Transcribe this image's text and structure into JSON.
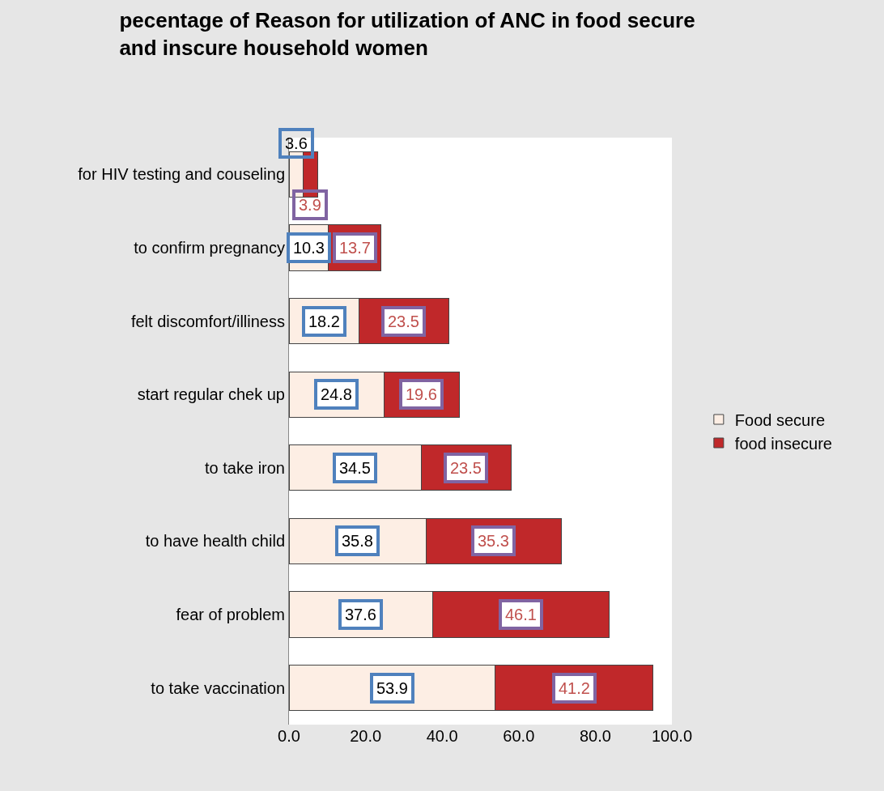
{
  "chart_data": {
    "type": "bar",
    "orientation": "horizontal",
    "stacked": true,
    "title": "pecentage of Reason for utilization of ANC in food secure and inscure household women",
    "categories": [
      "for HIV testing and couseling",
      "to confirm pregnancy",
      "felt discomfort/illiness",
      "start regular chek up",
      "to take iron",
      "to have health child",
      "fear of problem",
      "to take vaccination"
    ],
    "series": [
      {
        "name": "Food secure",
        "color": "#fdeee4",
        "values": [
          3.6,
          10.3,
          18.2,
          24.8,
          34.5,
          35.8,
          37.6,
          53.9
        ]
      },
      {
        "name": "food insecure",
        "color": "#c0282a",
        "values": [
          3.9,
          13.7,
          23.5,
          19.6,
          23.5,
          35.3,
          46.1,
          41.2
        ]
      }
    ],
    "xlim": [
      0,
      100
    ],
    "xticks": [
      {
        "value": 0,
        "label": "0.0"
      },
      {
        "value": 20,
        "label": "20.0"
      },
      {
        "value": 40,
        "label": "40.0"
      },
      {
        "value": 60,
        "label": "60.0"
      },
      {
        "value": 80,
        "label": "80.0"
      },
      {
        "value": 100,
        "label": "100.0"
      }
    ],
    "grid": false,
    "legend": "right",
    "data_labels": true
  }
}
